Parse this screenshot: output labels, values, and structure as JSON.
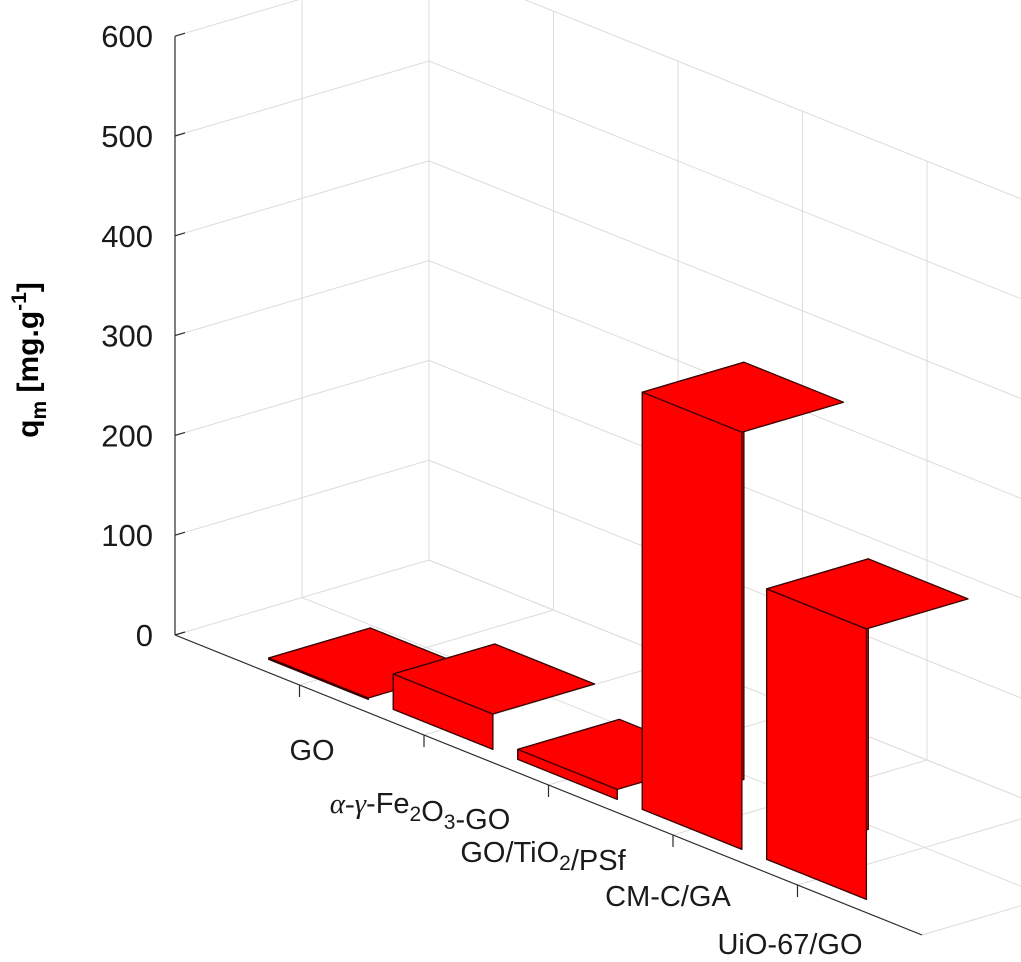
{
  "chart_data": {
    "type": "bar",
    "subtype": "3d-bar",
    "categories": [
      "GO",
      "α-γ-Fe2O3-GO",
      "GO/TiO2/PSf",
      "CM-C/GA",
      "UiO-67/GO"
    ],
    "category_labels": [
      {
        "parts": [
          {
            "t": "GO"
          }
        ]
      },
      {
        "parts": [
          {
            "t": "α-γ-Fe",
            "italic_prefix": "α-γ"
          },
          {
            "t": "2",
            "sub": true
          },
          {
            "t": "O"
          },
          {
            "t": "3",
            "sub": true
          },
          {
            "t": "-GO"
          }
        ]
      },
      {
        "parts": [
          {
            "t": "GO/TiO"
          },
          {
            "t": "2",
            "sub": true
          },
          {
            "t": "/PSf"
          }
        ]
      },
      {
        "parts": [
          {
            "t": "CM-C/GA"
          }
        ]
      },
      {
        "parts": [
          {
            "t": "UiO-67/GO"
          }
        ]
      }
    ],
    "values": [
      1.4,
      35.4,
      10.0,
      418.0,
      271.0
    ],
    "ylim": [
      0,
      600
    ],
    "yticks": [
      "0",
      "100",
      "200",
      "300",
      "400",
      "500",
      "600"
    ],
    "ylabel": {
      "base": "q",
      "sub": "m",
      "unit_pre": " [mg.g",
      "sup": "-1",
      "unit_post": "]"
    },
    "grid": true,
    "bar_color": "#ff0000",
    "edge_color": "#3a0000"
  }
}
